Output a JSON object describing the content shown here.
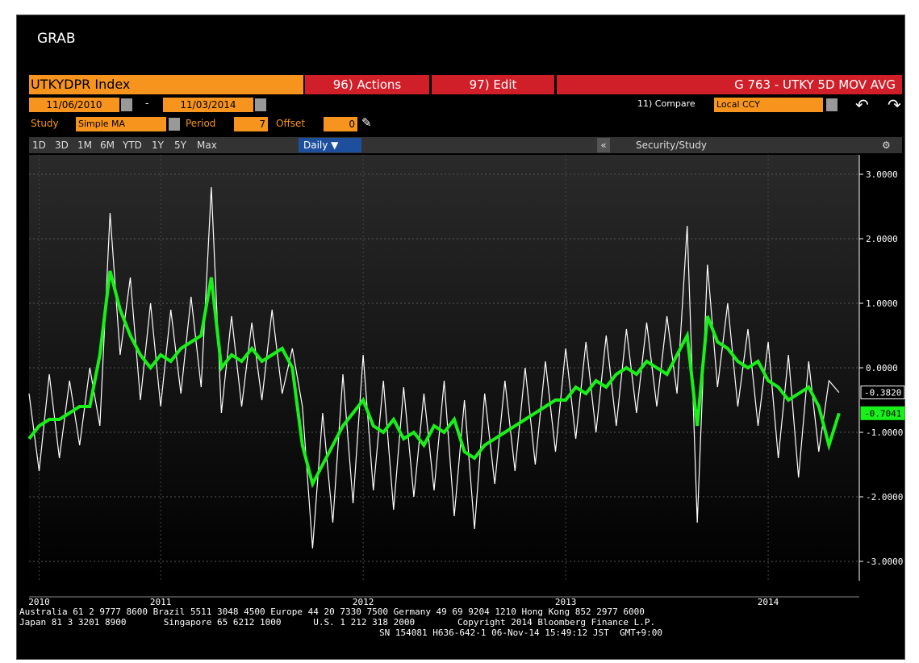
{
  "header": {
    "title": "GRAB"
  },
  "toolbar": {
    "security": "UTKYDPR Index",
    "actions": "96) Actions",
    "edit": "97) Edit",
    "chart_title": "G 763 - UTKY 5D MOV AVG",
    "start_date": "11/06/2010",
    "date_sep": "-",
    "end_date": "11/03/2014",
    "compare_label": "11) Compare",
    "compare_value": "Local CCY",
    "study_label": "Study",
    "study_value": "Simple MA",
    "period_label": "Period",
    "period_value": 7,
    "offset_label": "Offset",
    "offset_value": 0,
    "ranges": [
      "1D",
      "3D",
      "1M",
      "6M",
      "YTD",
      "1Y",
      "5Y",
      "Max"
    ],
    "frequency": "Daily ▼",
    "security_study": "Security/Study"
  },
  "chart_data": {
    "type": "line",
    "x": [
      2010.85,
      2010.9,
      2010.95,
      2011,
      2011.05,
      2011.1,
      2011.15,
      2011.2,
      2011.25,
      2011.3,
      2011.35,
      2011.4,
      2011.45,
      2011.5,
      2011.55,
      2011.6,
      2011.65,
      2011.7,
      2011.75,
      2011.8,
      2011.85,
      2011.9,
      2011.95,
      2012,
      2012.05,
      2012.1,
      2012.15,
      2012.2,
      2012.25,
      2012.3,
      2012.35,
      2012.4,
      2012.45,
      2012.5,
      2012.55,
      2012.6,
      2012.65,
      2012.7,
      2012.75,
      2012.8,
      2012.85,
      2012.9,
      2012.95,
      2013,
      2013.05,
      2013.1,
      2013.15,
      2013.2,
      2013.25,
      2013.3,
      2013.35,
      2013.4,
      2013.45,
      2013.5,
      2013.55,
      2013.6,
      2013.65,
      2013.7,
      2013.75,
      2013.8,
      2013.85,
      2013.9,
      2013.95,
      2014,
      2014.05,
      2014.1,
      2014.15,
      2014.2,
      2014.25,
      2014.3,
      2014.35,
      2014.4,
      2014.45,
      2014.5,
      2014.55,
      2014.6,
      2014.65,
      2014.7,
      2014.75,
      2014.8,
      2014.85
    ],
    "series": [
      {
        "color": "#ffffff",
        "values": [
          -0.4,
          -1.6,
          -0.1,
          -1.4,
          -0.2,
          -1.2,
          0,
          -0.9,
          2.4,
          0.2,
          1.4,
          -0.5,
          1,
          -0.6,
          0.9,
          -0.4,
          1.1,
          -0.3,
          2.8,
          -0.7,
          0.8,
          -0.6,
          0.7,
          -0.5,
          0.9,
          -0.4,
          0.3,
          -0.6,
          -2.8,
          -0.7,
          -2.4,
          -0.1,
          -2.1,
          0.2,
          -1.9,
          -0.2,
          -2.2,
          -0.3,
          -2,
          -0.4,
          -1.9,
          -0.2,
          -2.3,
          -0.5,
          -2.5,
          -0.4,
          -1.8,
          -0.2,
          -1.6,
          0,
          -1.5,
          0.1,
          -1.3,
          0.3,
          -1.1,
          0.4,
          -1,
          0.5,
          -0.9,
          0.6,
          -0.7,
          0.7,
          -0.6,
          0.8,
          -0.4,
          2.2,
          -2.4,
          1.6,
          -0.3,
          1,
          -0.6,
          0.6,
          -0.9,
          0.4,
          -1.4,
          0.2,
          -1.7,
          0.1,
          -1.3,
          -0.2,
          -0.382
        ],
        "last_value": {
          "value": -0.382,
          "label": "-0.3820"
        }
      },
      {
        "color": "#19f019",
        "values": [
          -1.1,
          -0.9,
          -0.8,
          -0.8,
          -0.7,
          -0.6,
          -0.6,
          0.2,
          1.5,
          0.9,
          0.5,
          0.2,
          0,
          0.2,
          0.1,
          0.3,
          0.4,
          0.5,
          1.4,
          0,
          0.2,
          0.1,
          0.3,
          0.1,
          0.2,
          0.3,
          0,
          -1.2,
          -1.8,
          -1.5,
          -1.2,
          -0.9,
          -0.7,
          -0.5,
          -0.9,
          -1,
          -0.8,
          -1.1,
          -1,
          -1.2,
          -0.9,
          -1,
          -0.8,
          -1.3,
          -1.4,
          -1.2,
          -1.1,
          -1,
          -0.9,
          -0.8,
          -0.7,
          -0.6,
          -0.5,
          -0.5,
          -0.3,
          -0.4,
          -0.2,
          -0.3,
          -0.1,
          0,
          -0.1,
          0.1,
          0,
          -0.1,
          0.2,
          0.5,
          -0.9,
          0.8,
          0.4,
          0.3,
          0.1,
          0,
          0.1,
          -0.2,
          -0.3,
          -0.5,
          -0.4,
          -0.3,
          -0.6,
          -1.2,
          -0.7041
        ],
        "last_value": {
          "value": -0.7041,
          "label": "-0.7041"
        }
      }
    ],
    "xlim": [
      2010.85,
      2014.95
    ],
    "xticks": [
      {
        "value": 2010.9,
        "label": "2010"
      },
      {
        "value": 2011.5,
        "label": "2011"
      },
      {
        "value": 2012.5,
        "label": "2012"
      },
      {
        "value": 2013.5,
        "label": "2013"
      },
      {
        "value": 2014.5,
        "label": "2014"
      }
    ],
    "ylim": [
      -3.3,
      3.3
    ],
    "yticks": [
      {
        "value": 3,
        "label": "3.0000"
      },
      {
        "value": 2,
        "label": "2.0000"
      },
      {
        "value": 1,
        "label": "1.0000"
      },
      {
        "value": 0,
        "label": "0.0000"
      },
      {
        "value": -1,
        "label": "-1.0000"
      },
      {
        "value": -2,
        "label": "-2.0000"
      },
      {
        "value": -3,
        "label": "-3.0000"
      }
    ],
    "grid": true
  },
  "footer": {
    "lines": [
      "Australia 61 2 9777 8600 Brazil 5511 3048 4500 Europe 44 20 7330 7500 Germany 49 69 9204 1210 Hong Kong 852 2977 6000",
      "Japan 81 3 3201 8900       Singapore 65 6212 1000      U.S. 1 212 318 2000        Copyright 2014 Bloomberg Finance L.P.",
      "SN 154081 H636-642-1 06-Nov-14 15:49:12 JST  GMT+9:00"
    ]
  }
}
